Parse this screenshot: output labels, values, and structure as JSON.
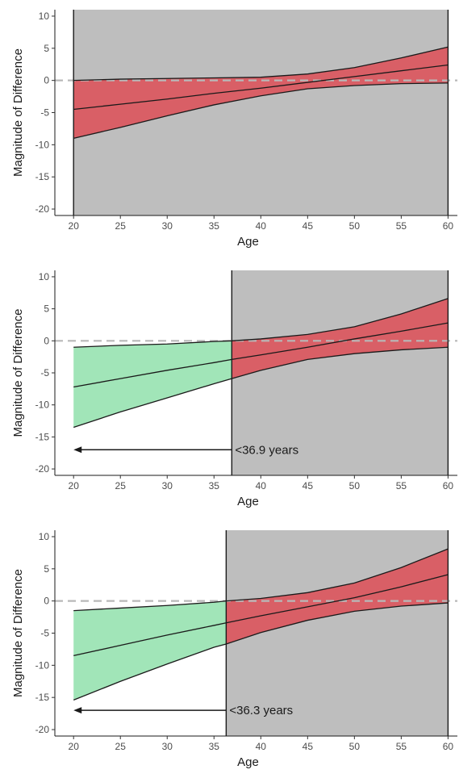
{
  "chart_data": [
    {
      "type": "area",
      "xlabel": "Age",
      "ylabel": "Magnitude of Difference",
      "xlim": [
        18,
        61
      ],
      "ylim": [
        -21,
        11
      ],
      "xticks": [
        20,
        25,
        30,
        35,
        40,
        45,
        50,
        55,
        60
      ],
      "yticks": [
        10,
        5,
        0,
        -5,
        -10,
        -15,
        -20
      ],
      "x_tick_labels": [
        "20",
        "25",
        "30",
        "35",
        "40",
        "45",
        "50",
        "55",
        "60"
      ],
      "y_tick_labels": [
        "10",
        "5",
        "0",
        "-5",
        "-10",
        "-15",
        "-20"
      ],
      "reference_line_y": 0,
      "shaded_region_x": [
        20,
        60
      ],
      "threshold_x": null,
      "annotation": "",
      "colors": {
        "significant": "#a1e5b8",
        "nonsignificant": "#d95f66",
        "shade": "#bebebe"
      },
      "series": {
        "x": [
          20,
          25,
          30,
          35,
          40,
          45,
          50,
          55,
          60
        ],
        "estimate": [
          -4.5,
          -3.7,
          -2.9,
          -2.0,
          -1.2,
          -0.3,
          0.6,
          1.5,
          2.4
        ],
        "lower": [
          -9.0,
          -7.3,
          -5.5,
          -3.8,
          -2.4,
          -1.3,
          -0.8,
          -0.5,
          -0.4
        ],
        "upper": [
          0.0,
          0.2,
          0.3,
          0.4,
          0.5,
          1.0,
          2.0,
          3.5,
          5.2
        ]
      }
    },
    {
      "type": "area",
      "xlabel": "Age",
      "ylabel": "Magnitude of Difference",
      "xlim": [
        18,
        61
      ],
      "ylim": [
        -21,
        11
      ],
      "xticks": [
        20,
        25,
        30,
        35,
        40,
        45,
        50,
        55,
        60
      ],
      "yticks": [
        10,
        5,
        0,
        -5,
        -10,
        -15,
        -20
      ],
      "x_tick_labels": [
        "20",
        "25",
        "30",
        "35",
        "40",
        "45",
        "50",
        "55",
        "60"
      ],
      "y_tick_labels": [
        "10",
        "5",
        "0",
        "-5",
        "-10",
        "-15",
        "-20"
      ],
      "reference_line_y": 0,
      "shaded_region_x": [
        36.9,
        60
      ],
      "threshold_x": 36.9,
      "annotation": "<36.9 years",
      "colors": {
        "significant": "#a1e5b8",
        "nonsignificant": "#d95f66",
        "shade": "#bebebe"
      },
      "series": {
        "x": [
          20,
          25,
          30,
          35,
          36.9,
          40,
          45,
          50,
          55,
          60
        ],
        "estimate": [
          -7.2,
          -5.9,
          -4.6,
          -3.4,
          -2.9,
          -2.2,
          -1.0,
          0.3,
          1.5,
          2.8
        ],
        "lower": [
          -13.5,
          -11.1,
          -8.9,
          -6.7,
          -5.9,
          -4.6,
          -2.9,
          -2.0,
          -1.4,
          -1.0
        ],
        "upper": [
          -1.0,
          -0.7,
          -0.5,
          -0.1,
          0.0,
          0.3,
          1.0,
          2.2,
          4.2,
          6.6
        ]
      }
    },
    {
      "type": "area",
      "xlabel": "Age",
      "ylabel": "Magnitude of Difference",
      "xlim": [
        18,
        61
      ],
      "ylim": [
        -21,
        11
      ],
      "xticks": [
        20,
        25,
        30,
        35,
        40,
        45,
        50,
        55,
        60
      ],
      "yticks": [
        10,
        5,
        0,
        -5,
        -10,
        -15,
        -20
      ],
      "x_tick_labels": [
        "20",
        "25",
        "30",
        "35",
        "40",
        "45",
        "50",
        "55",
        "60"
      ],
      "y_tick_labels": [
        "10",
        "5",
        "0",
        "-5",
        "-10",
        "-15",
        "-20"
      ],
      "reference_line_y": 0,
      "shaded_region_x": [
        36.3,
        60
      ],
      "threshold_x": 36.3,
      "annotation": "<36.3 years",
      "colors": {
        "significant": "#a1e5b8",
        "nonsignificant": "#d95f66",
        "shade": "#bebebe"
      },
      "series": {
        "x": [
          20,
          25,
          30,
          35,
          36.3,
          40,
          45,
          50,
          55,
          60
        ],
        "estimate": [
          -8.5,
          -6.9,
          -5.3,
          -3.8,
          -3.4,
          -2.3,
          -0.9,
          0.5,
          2.2,
          4.1
        ],
        "lower": [
          -15.4,
          -12.5,
          -9.8,
          -7.2,
          -6.7,
          -4.9,
          -3.0,
          -1.6,
          -0.8,
          -0.3
        ],
        "upper": [
          -1.5,
          -1.1,
          -0.7,
          -0.2,
          0.0,
          0.4,
          1.3,
          2.8,
          5.2,
          8.1
        ]
      }
    }
  ]
}
